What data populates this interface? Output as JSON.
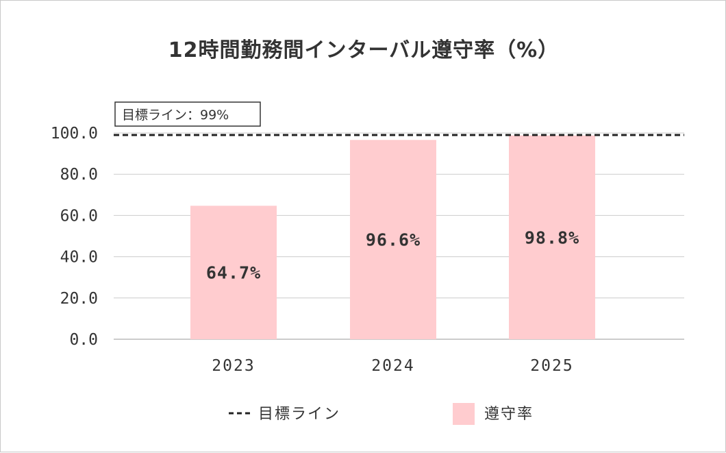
{
  "chart_data": {
    "type": "bar",
    "title": "12時間勤務間インターバル遵守率（%）",
    "categories": [
      "2023",
      "2024",
      "2025"
    ],
    "series": [
      {
        "name": "遵守率",
        "values": [
          64.7,
          96.6,
          98.8
        ],
        "labels": [
          "64.7%",
          "96.6%",
          "98.8%"
        ],
        "color": "#ffcccf"
      }
    ],
    "target": {
      "name": "目標ライン",
      "value": 99,
      "label": "目標ライン：99%",
      "color": "#222222"
    },
    "yticks": [
      "0.0",
      "20.0",
      "40.0",
      "60.0",
      "80.0",
      "100.0"
    ],
    "ylim": [
      0,
      100
    ],
    "grid": true,
    "legend_position": "bottom"
  }
}
